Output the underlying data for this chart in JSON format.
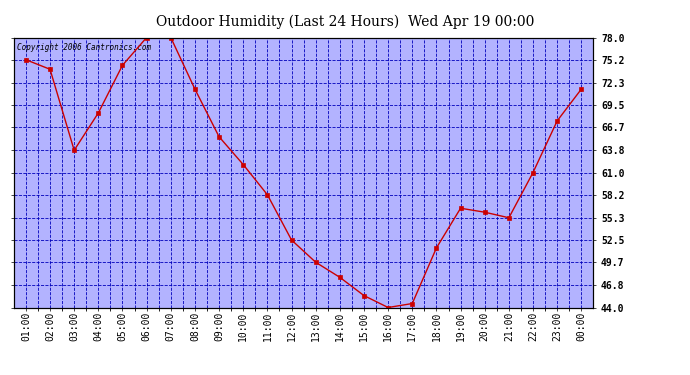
{
  "title": "Outdoor Humidity (Last 24 Hours)  Wed Apr 19 00:00",
  "copyright_text": "Copyright 2006 Cantronics.com",
  "x_labels": [
    "01:00",
    "02:00",
    "03:00",
    "04:00",
    "05:00",
    "06:00",
    "07:00",
    "08:00",
    "09:00",
    "10:00",
    "11:00",
    "12:00",
    "13:00",
    "14:00",
    "15:00",
    "16:00",
    "17:00",
    "18:00",
    "19:00",
    "20:00",
    "21:00",
    "22:00",
    "23:00",
    "00:00"
  ],
  "y_values": [
    75.2,
    74.0,
    63.8,
    68.5,
    74.5,
    78.0,
    78.0,
    71.5,
    65.5,
    62.0,
    58.2,
    52.5,
    49.7,
    47.8,
    45.5,
    44.0,
    44.5,
    51.5,
    56.5,
    56.0,
    55.3,
    61.0,
    67.5,
    71.5
  ],
  "line_color": "#cc0000",
  "marker_color": "#cc0000",
  "plot_bg_color": "#b3b3ff",
  "grid_color": "#0000bb",
  "title_color": "#000000",
  "border_color": "#000000",
  "ylim": [
    44.0,
    78.0
  ],
  "yticks": [
    44.0,
    46.8,
    49.7,
    52.5,
    55.3,
    58.2,
    61.0,
    63.8,
    66.7,
    69.5,
    72.3,
    75.2,
    78.0
  ],
  "ytick_labels": [
    "44.0",
    "46.8",
    "49.7",
    "52.5",
    "55.3",
    "58.2",
    "61.0",
    "63.8",
    "66.7",
    "69.5",
    "72.3",
    "75.2",
    "78.0"
  ],
  "title_fontsize": 10,
  "tick_fontsize": 7
}
